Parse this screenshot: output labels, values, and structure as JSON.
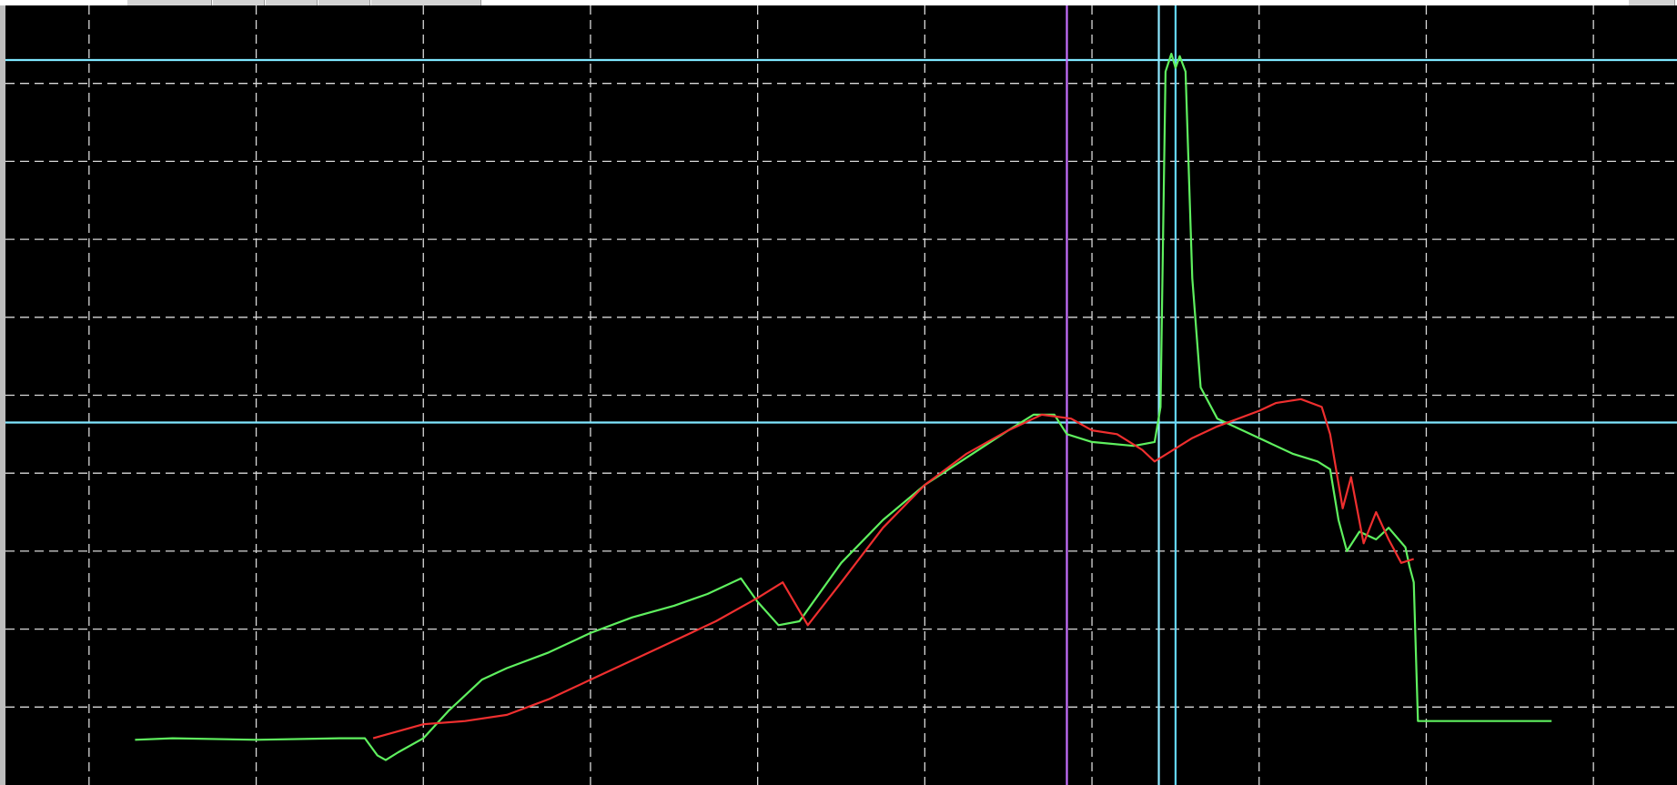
{
  "app": {
    "title": ""
  },
  "tabs": [
    "",
    "",
    "",
    "",
    "",
    ""
  ],
  "colors": {
    "background": "#000000",
    "grid": "#d9d9d9",
    "cursor_horizontal": "#7fe7ff",
    "cursor_vertical_1": "#c870ff",
    "cursor_vertical_2": "#8fe9ff",
    "cursor_vertical_3": "#63d6ff"
  },
  "chart_data": {
    "type": "line",
    "title": "",
    "xlabel": "",
    "ylabel": "",
    "xlim": [
      0,
      20
    ],
    "ylim": [
      0,
      10
    ],
    "grid": true,
    "legend": "none",
    "series": [
      {
        "color": "#5ff05f",
        "x": [
          1.55,
          2.0,
          3.0,
          4.0,
          4.3,
          4.45,
          4.55,
          4.7,
          5.0,
          5.3,
          5.7,
          6.0,
          6.5,
          7.0,
          7.5,
          8.0,
          8.4,
          8.8,
          9.0,
          9.25,
          9.5,
          10.0,
          10.5,
          11.0,
          11.5,
          12.0,
          12.3,
          12.55,
          12.7,
          13.0,
          13.5,
          13.75,
          13.82,
          13.88,
          13.95,
          14.0,
          14.05,
          14.12,
          14.2,
          14.3,
          14.5,
          15.0,
          15.4,
          15.7,
          15.85,
          15.95,
          16.05,
          16.2,
          16.4,
          16.55,
          16.75,
          16.8,
          16.85,
          16.9,
          18.5
        ],
        "y": [
          0.58,
          0.6,
          0.58,
          0.6,
          0.6,
          0.38,
          0.32,
          0.42,
          0.6,
          0.95,
          1.35,
          1.5,
          1.7,
          1.95,
          2.15,
          2.3,
          2.45,
          2.65,
          2.35,
          2.05,
          2.1,
          2.85,
          3.4,
          3.85,
          4.2,
          4.55,
          4.75,
          4.75,
          4.5,
          4.4,
          4.35,
          4.4,
          4.85,
          9.15,
          9.38,
          9.2,
          9.35,
          9.15,
          6.5,
          5.1,
          4.7,
          4.45,
          4.25,
          4.15,
          4.05,
          3.4,
          3.0,
          3.25,
          3.15,
          3.3,
          3.05,
          2.8,
          2.6,
          0.82,
          0.82
        ]
      },
      {
        "color": "#ef2f2f",
        "x": [
          4.4,
          5.0,
          5.5,
          6.0,
          6.5,
          7.0,
          7.5,
          8.0,
          8.5,
          9.0,
          9.3,
          9.6,
          10.0,
          10.5,
          11.0,
          11.5,
          12.0,
          12.4,
          12.75,
          13.0,
          13.3,
          13.6,
          13.75,
          14.2,
          14.5,
          15.0,
          15.2,
          15.5,
          15.75,
          15.85,
          16.0,
          16.1,
          16.25,
          16.4,
          16.55,
          16.7,
          16.85
        ],
        "y": [
          0.6,
          0.78,
          0.82,
          0.9,
          1.1,
          1.35,
          1.6,
          1.85,
          2.1,
          2.4,
          2.6,
          2.05,
          2.6,
          3.3,
          3.85,
          4.25,
          4.55,
          4.75,
          4.7,
          4.55,
          4.5,
          4.3,
          4.15,
          4.45,
          4.6,
          4.8,
          4.9,
          4.95,
          4.85,
          4.5,
          3.55,
          3.95,
          3.1,
          3.5,
          3.15,
          2.85,
          2.9
        ]
      }
    ],
    "horizontal_cursors": [
      9.3,
      4.65
    ],
    "vertical_cursors": [
      12.7,
      13.8,
      14.0
    ]
  }
}
